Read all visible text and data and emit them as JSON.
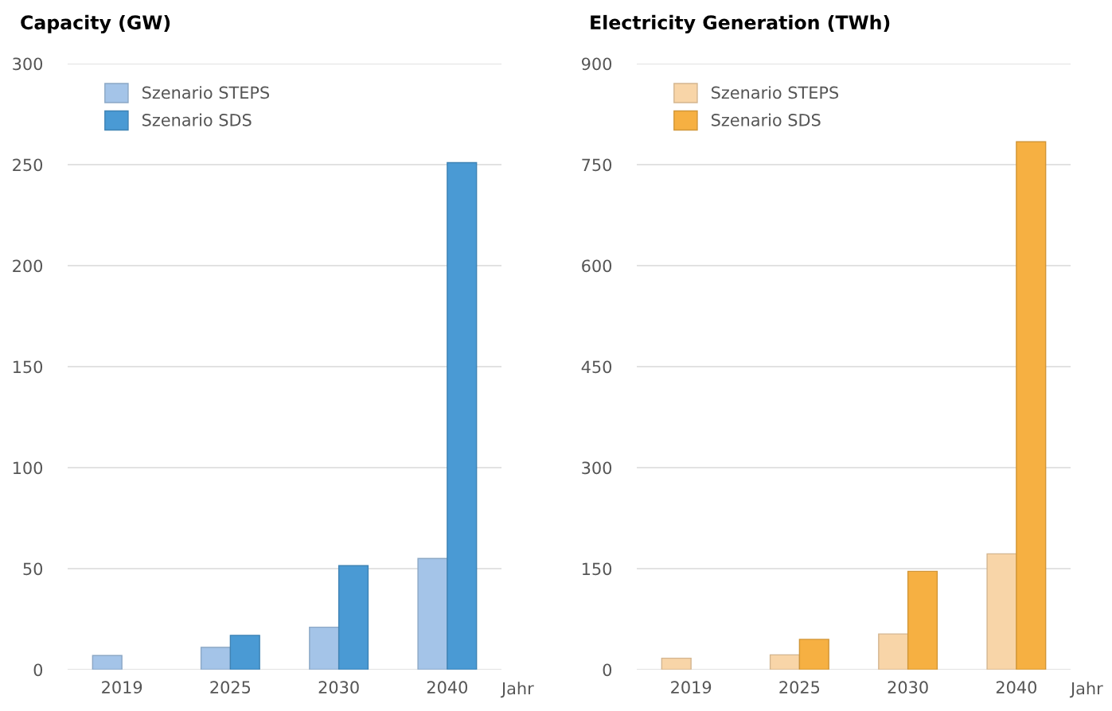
{
  "chart_data": [
    {
      "type": "bar",
      "title": "Capacity (GW)",
      "xlabel": "Jahr",
      "categories": [
        "2019",
        "2025",
        "2030",
        "2040"
      ],
      "series": [
        {
          "name": "Szenario STEPS",
          "color": "#a4c4e8",
          "values": [
            7,
            11,
            21,
            55
          ]
        },
        {
          "name": "Szenario SDS",
          "color": "#4a9ad4",
          "values": [
            null,
            17,
            51.5,
            251
          ]
        }
      ],
      "ylim": [
        0,
        300
      ],
      "yticks": [
        0,
        50,
        100,
        150,
        200,
        250,
        300
      ],
      "grid": "y",
      "legend": "top left"
    },
    {
      "type": "bar",
      "title": "Electricity Generation (TWh)",
      "xlabel": "Jahr",
      "categories": [
        "2019",
        "2025",
        "2030",
        "2040"
      ],
      "series": [
        {
          "name": "Szenario STEPS",
          "color": "#f8d5a8",
          "values": [
            17,
            22,
            53,
            172
          ]
        },
        {
          "name": "Szenario SDS",
          "color": "#f6b042",
          "values": [
            null,
            45,
            146,
            784
          ]
        }
      ],
      "ylim": [
        0,
        900
      ],
      "yticks": [
        0,
        150,
        300,
        450,
        600,
        750,
        900
      ],
      "grid": "y",
      "legend": "top left"
    }
  ]
}
